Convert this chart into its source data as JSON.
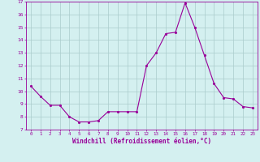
{
  "x": [
    0,
    1,
    2,
    3,
    4,
    5,
    6,
    7,
    8,
    9,
    10,
    11,
    12,
    13,
    14,
    15,
    16,
    17,
    18,
    19,
    20,
    21,
    22,
    23
  ],
  "y": [
    10.4,
    9.6,
    8.9,
    8.9,
    8.0,
    7.6,
    7.6,
    7.7,
    8.4,
    8.4,
    8.4,
    8.4,
    12.0,
    13.0,
    14.5,
    14.6,
    16.9,
    15.0,
    12.8,
    10.6,
    9.5,
    9.4,
    8.8,
    8.7
  ],
  "line_color": "#990099",
  "marker_color": "#990099",
  "bg_color": "#d4f0f0",
  "grid_color": "#aacccc",
  "xlabel": "Windchill (Refroidissement éolien,°C)",
  "xlabel_color": "#990099",
  "tick_color": "#990099",
  "ylim": [
    7,
    17
  ],
  "xlim": [
    -0.5,
    23.5
  ],
  "yticks": [
    7,
    8,
    9,
    10,
    11,
    12,
    13,
    14,
    15,
    16,
    17
  ],
  "xticks": [
    0,
    1,
    2,
    3,
    4,
    5,
    6,
    7,
    8,
    9,
    10,
    11,
    12,
    13,
    14,
    15,
    16,
    17,
    18,
    19,
    20,
    21,
    22,
    23
  ],
  "figsize": [
    3.2,
    2.0
  ],
  "dpi": 100
}
